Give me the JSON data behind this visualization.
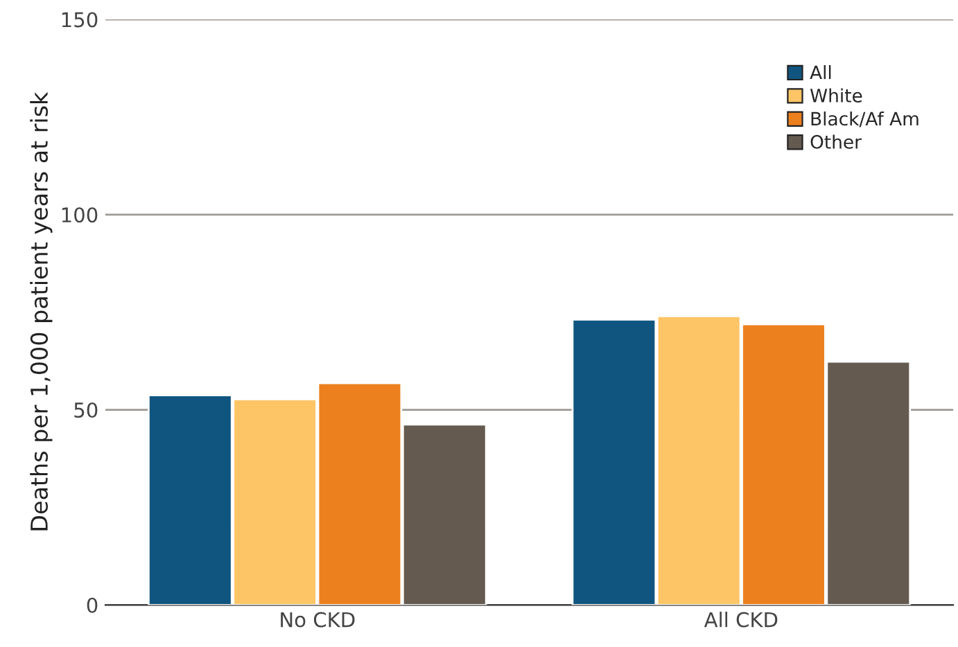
{
  "chart_data": {
    "type": "bar",
    "ylabel": "Deaths per 1,000 patient years at risk",
    "categories": [
      "No CKD",
      "All CKD"
    ],
    "series": [
      {
        "name": "All",
        "color": "#10557f",
        "values": [
          53.7,
          73.1
        ]
      },
      {
        "name": "White",
        "color": "#fec567",
        "values": [
          52.7,
          74.0
        ]
      },
      {
        "name": "Black/Af Am",
        "color": "#ec801f",
        "values": [
          56.8,
          71.9
        ]
      },
      {
        "name": "Other",
        "color": "#655a50",
        "values": [
          46.2,
          62.3
        ]
      }
    ],
    "ylim": [
      0,
      150
    ],
    "yticks": [
      0,
      50,
      100,
      150
    ],
    "grid": "y",
    "legend": "top right"
  }
}
